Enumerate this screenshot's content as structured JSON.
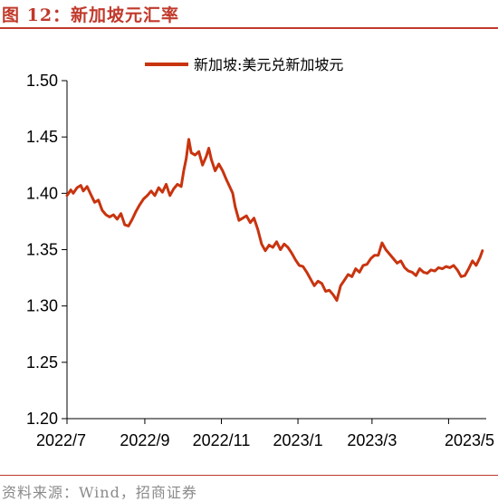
{
  "header": {
    "title": "图 12：新加坡元汇率"
  },
  "footer": {
    "source": "资料来源：Wind，招商证券"
  },
  "chart_data": {
    "type": "line",
    "title": "",
    "xlabel": "",
    "ylabel": "",
    "ylim": [
      1.2,
      1.5
    ],
    "yticks": [
      "1.20",
      "1.25",
      "1.30",
      "1.35",
      "1.40",
      "1.45",
      "1.50"
    ],
    "xticks": [
      "2022/7",
      "2022/9",
      "2022/11",
      "2023/1",
      "2023/3",
      "2023/5"
    ],
    "x_start": "2022-07-01",
    "x_end": "2023-05-31",
    "grid": false,
    "legend_position": "top",
    "colors": {
      "series": "#c8340f"
    },
    "series": [
      {
        "name": "新加坡:美元兑新加坡元",
        "points": [
          [
            "2022-07-01",
            1.398
          ],
          [
            "2022-07-04",
            1.403
          ],
          [
            "2022-07-06",
            1.4
          ],
          [
            "2022-07-09",
            1.405
          ],
          [
            "2022-07-12",
            1.407
          ],
          [
            "2022-07-14",
            1.402
          ],
          [
            "2022-07-17",
            1.406
          ],
          [
            "2022-07-20",
            1.399
          ],
          [
            "2022-07-23",
            1.392
          ],
          [
            "2022-07-26",
            1.394
          ],
          [
            "2022-07-29",
            1.385
          ],
          [
            "2022-08-01",
            1.381
          ],
          [
            "2022-08-04",
            1.379
          ],
          [
            "2022-08-07",
            1.381
          ],
          [
            "2022-08-10",
            1.377
          ],
          [
            "2022-08-13",
            1.382
          ],
          [
            "2022-08-16",
            1.372
          ],
          [
            "2022-08-19",
            1.371
          ],
          [
            "2022-08-22",
            1.377
          ],
          [
            "2022-08-25",
            1.384
          ],
          [
            "2022-08-28",
            1.39
          ],
          [
            "2022-08-31",
            1.395
          ],
          [
            "2022-09-03",
            1.398
          ],
          [
            "2022-09-06",
            1.402
          ],
          [
            "2022-09-09",
            1.398
          ],
          [
            "2022-09-12",
            1.405
          ],
          [
            "2022-09-15",
            1.401
          ],
          [
            "2022-09-18",
            1.408
          ],
          [
            "2022-09-21",
            1.398
          ],
          [
            "2022-09-24",
            1.404
          ],
          [
            "2022-09-27",
            1.408
          ],
          [
            "2022-09-30",
            1.406
          ],
          [
            "2022-10-02",
            1.42
          ],
          [
            "2022-10-04",
            1.431
          ],
          [
            "2022-10-06",
            1.448
          ],
          [
            "2022-10-08",
            1.436
          ],
          [
            "2022-10-11",
            1.434
          ],
          [
            "2022-10-14",
            1.437
          ],
          [
            "2022-10-17",
            1.425
          ],
          [
            "2022-10-20",
            1.433
          ],
          [
            "2022-10-22",
            1.44
          ],
          [
            "2022-10-24",
            1.43
          ],
          [
            "2022-10-27",
            1.42
          ],
          [
            "2022-10-30",
            1.426
          ],
          [
            "2022-11-02",
            1.42
          ],
          [
            "2022-11-05",
            1.412
          ],
          [
            "2022-11-08",
            1.405
          ],
          [
            "2022-11-10",
            1.4
          ],
          [
            "2022-11-12",
            1.388
          ],
          [
            "2022-11-15",
            1.376
          ],
          [
            "2022-11-18",
            1.378
          ],
          [
            "2022-11-21",
            1.38
          ],
          [
            "2022-11-24",
            1.374
          ],
          [
            "2022-11-27",
            1.378
          ],
          [
            "2022-11-30",
            1.368
          ],
          [
            "2022-12-03",
            1.355
          ],
          [
            "2022-12-06",
            1.349
          ],
          [
            "2022-12-09",
            1.354
          ],
          [
            "2022-12-12",
            1.352
          ],
          [
            "2022-12-15",
            1.357
          ],
          [
            "2022-12-18",
            1.35
          ],
          [
            "2022-12-21",
            1.355
          ],
          [
            "2022-12-24",
            1.352
          ],
          [
            "2022-12-27",
            1.347
          ],
          [
            "2022-12-30",
            1.341
          ],
          [
            "2023-01-02",
            1.336
          ],
          [
            "2023-01-05",
            1.335
          ],
          [
            "2023-01-08",
            1.33
          ],
          [
            "2023-01-11",
            1.324
          ],
          [
            "2023-01-14",
            1.318
          ],
          [
            "2023-01-17",
            1.322
          ],
          [
            "2023-01-20",
            1.32
          ],
          [
            "2023-01-23",
            1.313
          ],
          [
            "2023-01-26",
            1.314
          ],
          [
            "2023-01-29",
            1.31
          ],
          [
            "2023-02-01",
            1.305
          ],
          [
            "2023-02-04",
            1.318
          ],
          [
            "2023-02-07",
            1.323
          ],
          [
            "2023-02-10",
            1.328
          ],
          [
            "2023-02-13",
            1.326
          ],
          [
            "2023-02-16",
            1.333
          ],
          [
            "2023-02-19",
            1.33
          ],
          [
            "2023-02-22",
            1.336
          ],
          [
            "2023-02-25",
            1.337
          ],
          [
            "2023-02-28",
            1.342
          ],
          [
            "2023-03-03",
            1.345
          ],
          [
            "2023-03-06",
            1.345
          ],
          [
            "2023-03-09",
            1.356
          ],
          [
            "2023-03-12",
            1.35
          ],
          [
            "2023-03-15",
            1.346
          ],
          [
            "2023-03-18",
            1.342
          ],
          [
            "2023-03-21",
            1.338
          ],
          [
            "2023-03-24",
            1.34
          ],
          [
            "2023-03-27",
            1.334
          ],
          [
            "2023-03-30",
            1.331
          ],
          [
            "2023-04-02",
            1.33
          ],
          [
            "2023-04-05",
            1.327
          ],
          [
            "2023-04-08",
            1.333
          ],
          [
            "2023-04-11",
            1.33
          ],
          [
            "2023-04-14",
            1.329
          ],
          [
            "2023-04-17",
            1.332
          ],
          [
            "2023-04-20",
            1.331
          ],
          [
            "2023-04-23",
            1.334
          ],
          [
            "2023-04-26",
            1.333
          ],
          [
            "2023-04-29",
            1.335
          ],
          [
            "2023-05-02",
            1.334
          ],
          [
            "2023-05-05",
            1.336
          ],
          [
            "2023-05-08",
            1.332
          ],
          [
            "2023-05-11",
            1.326
          ],
          [
            "2023-05-14",
            1.327
          ],
          [
            "2023-05-17",
            1.333
          ],
          [
            "2023-05-20",
            1.34
          ],
          [
            "2023-05-23",
            1.336
          ],
          [
            "2023-05-26",
            1.343
          ],
          [
            "2023-05-28",
            1.349
          ]
        ]
      }
    ]
  }
}
